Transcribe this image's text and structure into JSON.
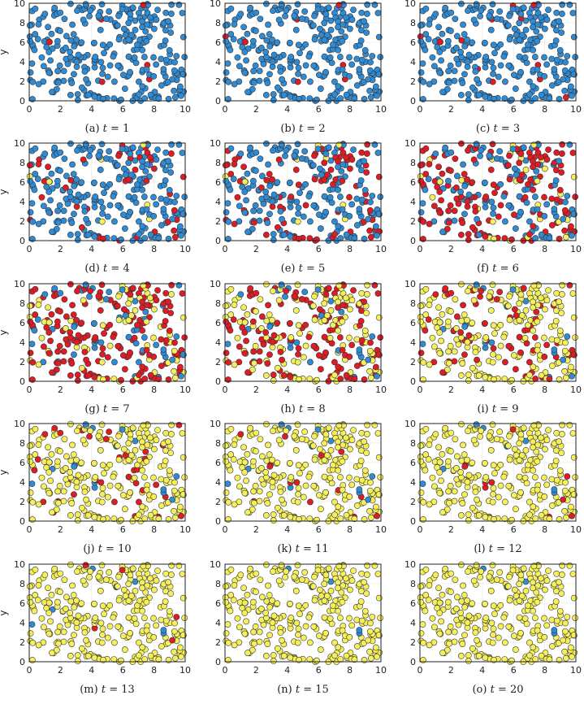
{
  "colors": {
    "susceptible": "#2e8bd6",
    "infected": "#e01b24",
    "recovered": "#f5f05a"
  },
  "chart_data": [
    {
      "type": "scatter",
      "caption": "(a)",
      "t_label": "t",
      "t_value": "1",
      "ylabel": "y",
      "xlim": [
        0,
        10
      ],
      "ylim": [
        0,
        10
      ],
      "xticks": [
        "0",
        "2",
        "4",
        "6",
        "8",
        "10"
      ],
      "yticks": [
        "0",
        "2",
        "4",
        "6",
        "8",
        "10"
      ],
      "fractions": {
        "infected": 0.02,
        "recovered": 0.0
      }
    },
    {
      "type": "scatter",
      "caption": "(b)",
      "t_label": "t",
      "t_value": "2",
      "ylabel": "",
      "xlim": [
        0,
        10
      ],
      "ylim": [
        0,
        10
      ],
      "xticks": [
        "0",
        "2",
        "4",
        "6",
        "8",
        "10"
      ],
      "yticks": [
        "0",
        "2",
        "4",
        "6",
        "8",
        "10"
      ],
      "fractions": {
        "infected": 0.03,
        "recovered": 0.0
      }
    },
    {
      "type": "scatter",
      "caption": "(c)",
      "t_label": "t",
      "t_value": "3",
      "ylabel": "",
      "xlim": [
        0,
        10
      ],
      "ylim": [
        0,
        10
      ],
      "xticks": [
        "0",
        "2",
        "4",
        "6",
        "8",
        "10"
      ],
      "yticks": [
        "0",
        "2",
        "4",
        "6",
        "8",
        "10"
      ],
      "fractions": {
        "infected": 0.07,
        "recovered": 0.0
      }
    },
    {
      "type": "scatter",
      "caption": "(d)",
      "t_label": "t",
      "t_value": "4",
      "ylabel": "y",
      "xlim": [
        0,
        10
      ],
      "ylim": [
        0,
        10
      ],
      "xticks": [
        "0",
        "2",
        "4",
        "6",
        "8",
        "10"
      ],
      "yticks": [
        "0",
        "2",
        "4",
        "6",
        "8",
        "10"
      ],
      "fractions": {
        "infected": 0.15,
        "recovered": 0.03
      }
    },
    {
      "type": "scatter",
      "caption": "(e)",
      "t_label": "t",
      "t_value": "5",
      "ylabel": "",
      "xlim": [
        0,
        10
      ],
      "ylim": [
        0,
        10
      ],
      "xticks": [
        "0",
        "2",
        "4",
        "6",
        "8",
        "10"
      ],
      "yticks": [
        "0",
        "2",
        "4",
        "6",
        "8",
        "10"
      ],
      "fractions": {
        "infected": 0.3,
        "recovered": 0.05
      }
    },
    {
      "type": "scatter",
      "caption": "(f)",
      "t_label": "t",
      "t_value": "6",
      "ylabel": "",
      "xlim": [
        0,
        10
      ],
      "ylim": [
        0,
        10
      ],
      "xticks": [
        "0",
        "2",
        "4",
        "6",
        "8",
        "10"
      ],
      "yticks": [
        "0",
        "2",
        "4",
        "6",
        "8",
        "10"
      ],
      "fractions": {
        "infected": 0.5,
        "recovered": 0.12
      }
    },
    {
      "type": "scatter",
      "caption": "(g)",
      "t_label": "t",
      "t_value": "7",
      "ylabel": "y",
      "xlim": [
        0,
        10
      ],
      "ylim": [
        0,
        10
      ],
      "xticks": [
        "0",
        "2",
        "4",
        "6",
        "8",
        "10"
      ],
      "yticks": [
        "0",
        "2",
        "4",
        "6",
        "8",
        "10"
      ],
      "fractions": {
        "infected": 0.55,
        "recovered": 0.25
      }
    },
    {
      "type": "scatter",
      "caption": "(h)",
      "t_label": "t",
      "t_value": "8",
      "ylabel": "",
      "xlim": [
        0,
        10
      ],
      "ylim": [
        0,
        10
      ],
      "xticks": [
        "0",
        "2",
        "4",
        "6",
        "8",
        "10"
      ],
      "yticks": [
        "0",
        "2",
        "4",
        "6",
        "8",
        "10"
      ],
      "fractions": {
        "infected": 0.42,
        "recovered": 0.48
      }
    },
    {
      "type": "scatter",
      "caption": "(i)",
      "t_label": "t",
      "t_value": "9",
      "ylabel": "",
      "xlim": [
        0,
        10
      ],
      "ylim": [
        0,
        10
      ],
      "xticks": [
        "0",
        "2",
        "4",
        "6",
        "8",
        "10"
      ],
      "yticks": [
        "0",
        "2",
        "4",
        "6",
        "8",
        "10"
      ],
      "fractions": {
        "infected": 0.25,
        "recovered": 0.7
      }
    },
    {
      "type": "scatter",
      "caption": "(j)",
      "t_label": "t",
      "t_value": "10",
      "ylabel": "y",
      "xlim": [
        0,
        10
      ],
      "ylim": [
        0,
        10
      ],
      "xticks": [
        "0",
        "2",
        "4",
        "6",
        "8",
        "10"
      ],
      "yticks": [
        "0",
        "2",
        "4",
        "6",
        "8",
        "10"
      ],
      "fractions": {
        "infected": 0.14,
        "recovered": 0.82
      }
    },
    {
      "type": "scatter",
      "caption": "(k)",
      "t_label": "t",
      "t_value": "11",
      "ylabel": "",
      "xlim": [
        0,
        10
      ],
      "ylim": [
        0,
        10
      ],
      "xticks": [
        "0",
        "2",
        "4",
        "6",
        "8",
        "10"
      ],
      "yticks": [
        "0",
        "2",
        "4",
        "6",
        "8",
        "10"
      ],
      "fractions": {
        "infected": 0.06,
        "recovered": 0.91
      }
    },
    {
      "type": "scatter",
      "caption": "(l)",
      "t_label": "t",
      "t_value": "12",
      "ylabel": "",
      "xlim": [
        0,
        10
      ],
      "ylim": [
        0,
        10
      ],
      "xticks": [
        "0",
        "2",
        "4",
        "6",
        "8",
        "10"
      ],
      "yticks": [
        "0",
        "2",
        "4",
        "6",
        "8",
        "10"
      ],
      "fractions": {
        "infected": 0.03,
        "recovered": 0.95
      }
    },
    {
      "type": "scatter",
      "caption": "(m)",
      "t_label": "t",
      "t_value": "13",
      "ylabel": "y",
      "xlim": [
        0,
        10
      ],
      "ylim": [
        0,
        10
      ],
      "xticks": [
        "0",
        "2",
        "4",
        "6",
        "8",
        "10"
      ],
      "yticks": [
        "0",
        "2",
        "4",
        "6",
        "8",
        "10"
      ],
      "fractions": {
        "infected": 0.015,
        "recovered": 0.97
      }
    },
    {
      "type": "scatter",
      "caption": "(n)",
      "t_label": "t",
      "t_value": "15",
      "ylabel": "",
      "xlim": [
        0,
        10
      ],
      "ylim": [
        0,
        10
      ],
      "xticks": [
        "0",
        "2",
        "4",
        "6",
        "8",
        "10"
      ],
      "yticks": [
        "0",
        "2",
        "4",
        "6",
        "8",
        "10"
      ],
      "fractions": {
        "infected": 0.0,
        "recovered": 0.99
      }
    },
    {
      "type": "scatter",
      "caption": "(o)",
      "t_label": "t",
      "t_value": "20",
      "ylabel": "",
      "xlim": [
        0,
        10
      ],
      "ylim": [
        0,
        10
      ],
      "xticks": [
        "0",
        "2",
        "4",
        "6",
        "8",
        "10"
      ],
      "yticks": [
        "0",
        "2",
        "4",
        "6",
        "8",
        "10"
      ],
      "fractions": {
        "infected": 0.0,
        "recovered": 0.99
      }
    }
  ]
}
